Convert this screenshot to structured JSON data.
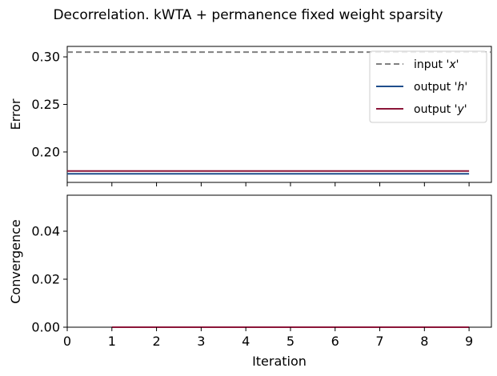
{
  "figure": {
    "title": "Decorrelation. kWTA + permanence fixed weight sparsity"
  },
  "chart_data": [
    {
      "type": "line",
      "ylabel": "Error",
      "xlabel": "",
      "xlim": [
        0,
        9.5
      ],
      "ylim": [
        0.168,
        0.311
      ],
      "yticks": [
        0.2,
        0.25,
        0.3
      ],
      "ytick_labels": [
        "0.20",
        "0.25",
        "0.30"
      ],
      "legend_position": "upper-right",
      "series": [
        {
          "name": "input 'x'",
          "legend_prefix": "input '",
          "legend_var": "x",
          "color": "#808080",
          "style": "dashed",
          "x": [
            0,
            9.5
          ],
          "y": [
            0.305,
            0.305
          ]
        },
        {
          "name": "output 'h'",
          "legend_prefix": "output '",
          "legend_var": "h",
          "color": "#1f4e8c",
          "style": "solid",
          "x": [
            0,
            9
          ],
          "y": [
            0.177,
            0.177
          ]
        },
        {
          "name": "output 'y'",
          "legend_prefix": "output '",
          "legend_var": "y",
          "color": "#8b1538",
          "style": "solid",
          "x": [
            0,
            9
          ],
          "y": [
            0.18,
            0.18
          ]
        }
      ]
    },
    {
      "type": "line",
      "ylabel": "Convergence",
      "xlabel": "Iteration",
      "xlim": [
        0,
        9.5
      ],
      "ylim": [
        0,
        0.055
      ],
      "xticks": [
        0,
        1,
        2,
        3,
        4,
        5,
        6,
        7,
        8,
        9
      ],
      "xtick_labels": [
        "0",
        "1",
        "2",
        "3",
        "4",
        "5",
        "6",
        "7",
        "8",
        "9"
      ],
      "yticks": [
        0,
        0.02,
        0.04
      ],
      "ytick_labels": [
        "0.00",
        "0.02",
        "0.04"
      ],
      "series": [
        {
          "color": "#1f4e8c",
          "style": "solid",
          "x": [
            1,
            9
          ],
          "y": [
            0,
            0
          ]
        },
        {
          "color": "#8b1538",
          "style": "solid",
          "x": [
            1,
            9
          ],
          "y": [
            0,
            0
          ]
        }
      ]
    }
  ]
}
